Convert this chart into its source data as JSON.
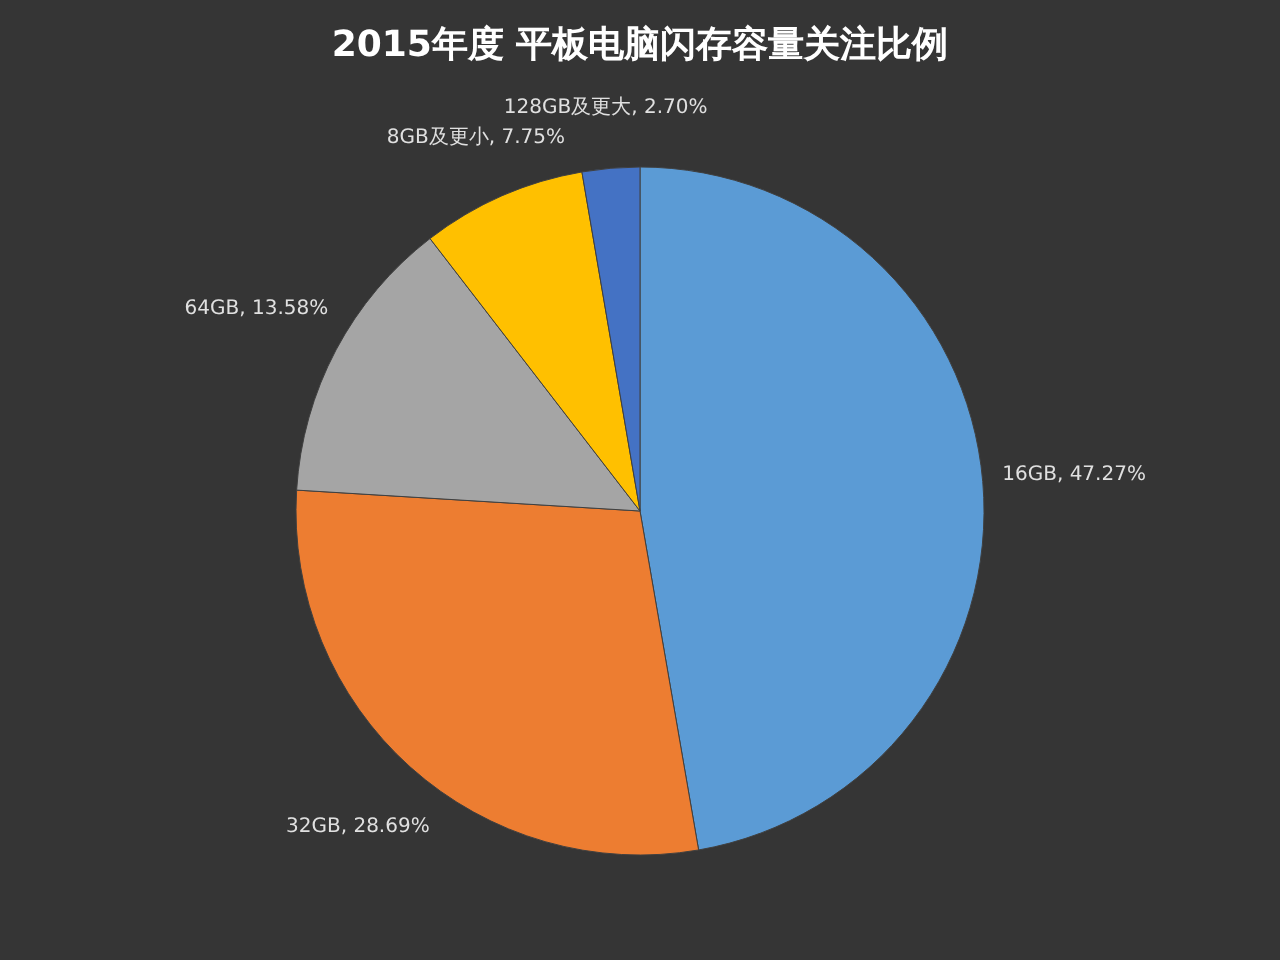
{
  "chart_data": {
    "type": "pie",
    "title": "2015年度 平板电脑闪存容量关注比例",
    "categories": [
      "16GB",
      "32GB",
      "64GB",
      "8GB及更小",
      "128GB及更大"
    ],
    "values": [
      47.27,
      28.69,
      13.58,
      7.75,
      2.7
    ],
    "value_labels": [
      "47.27%",
      "28.69%",
      "13.58%",
      "7.75%",
      "2.70%"
    ],
    "colors": [
      "#5b9bd5",
      "#ed7d31",
      "#a5a5a5",
      "#ffc000",
      "#4472c4"
    ],
    "legend": false
  }
}
